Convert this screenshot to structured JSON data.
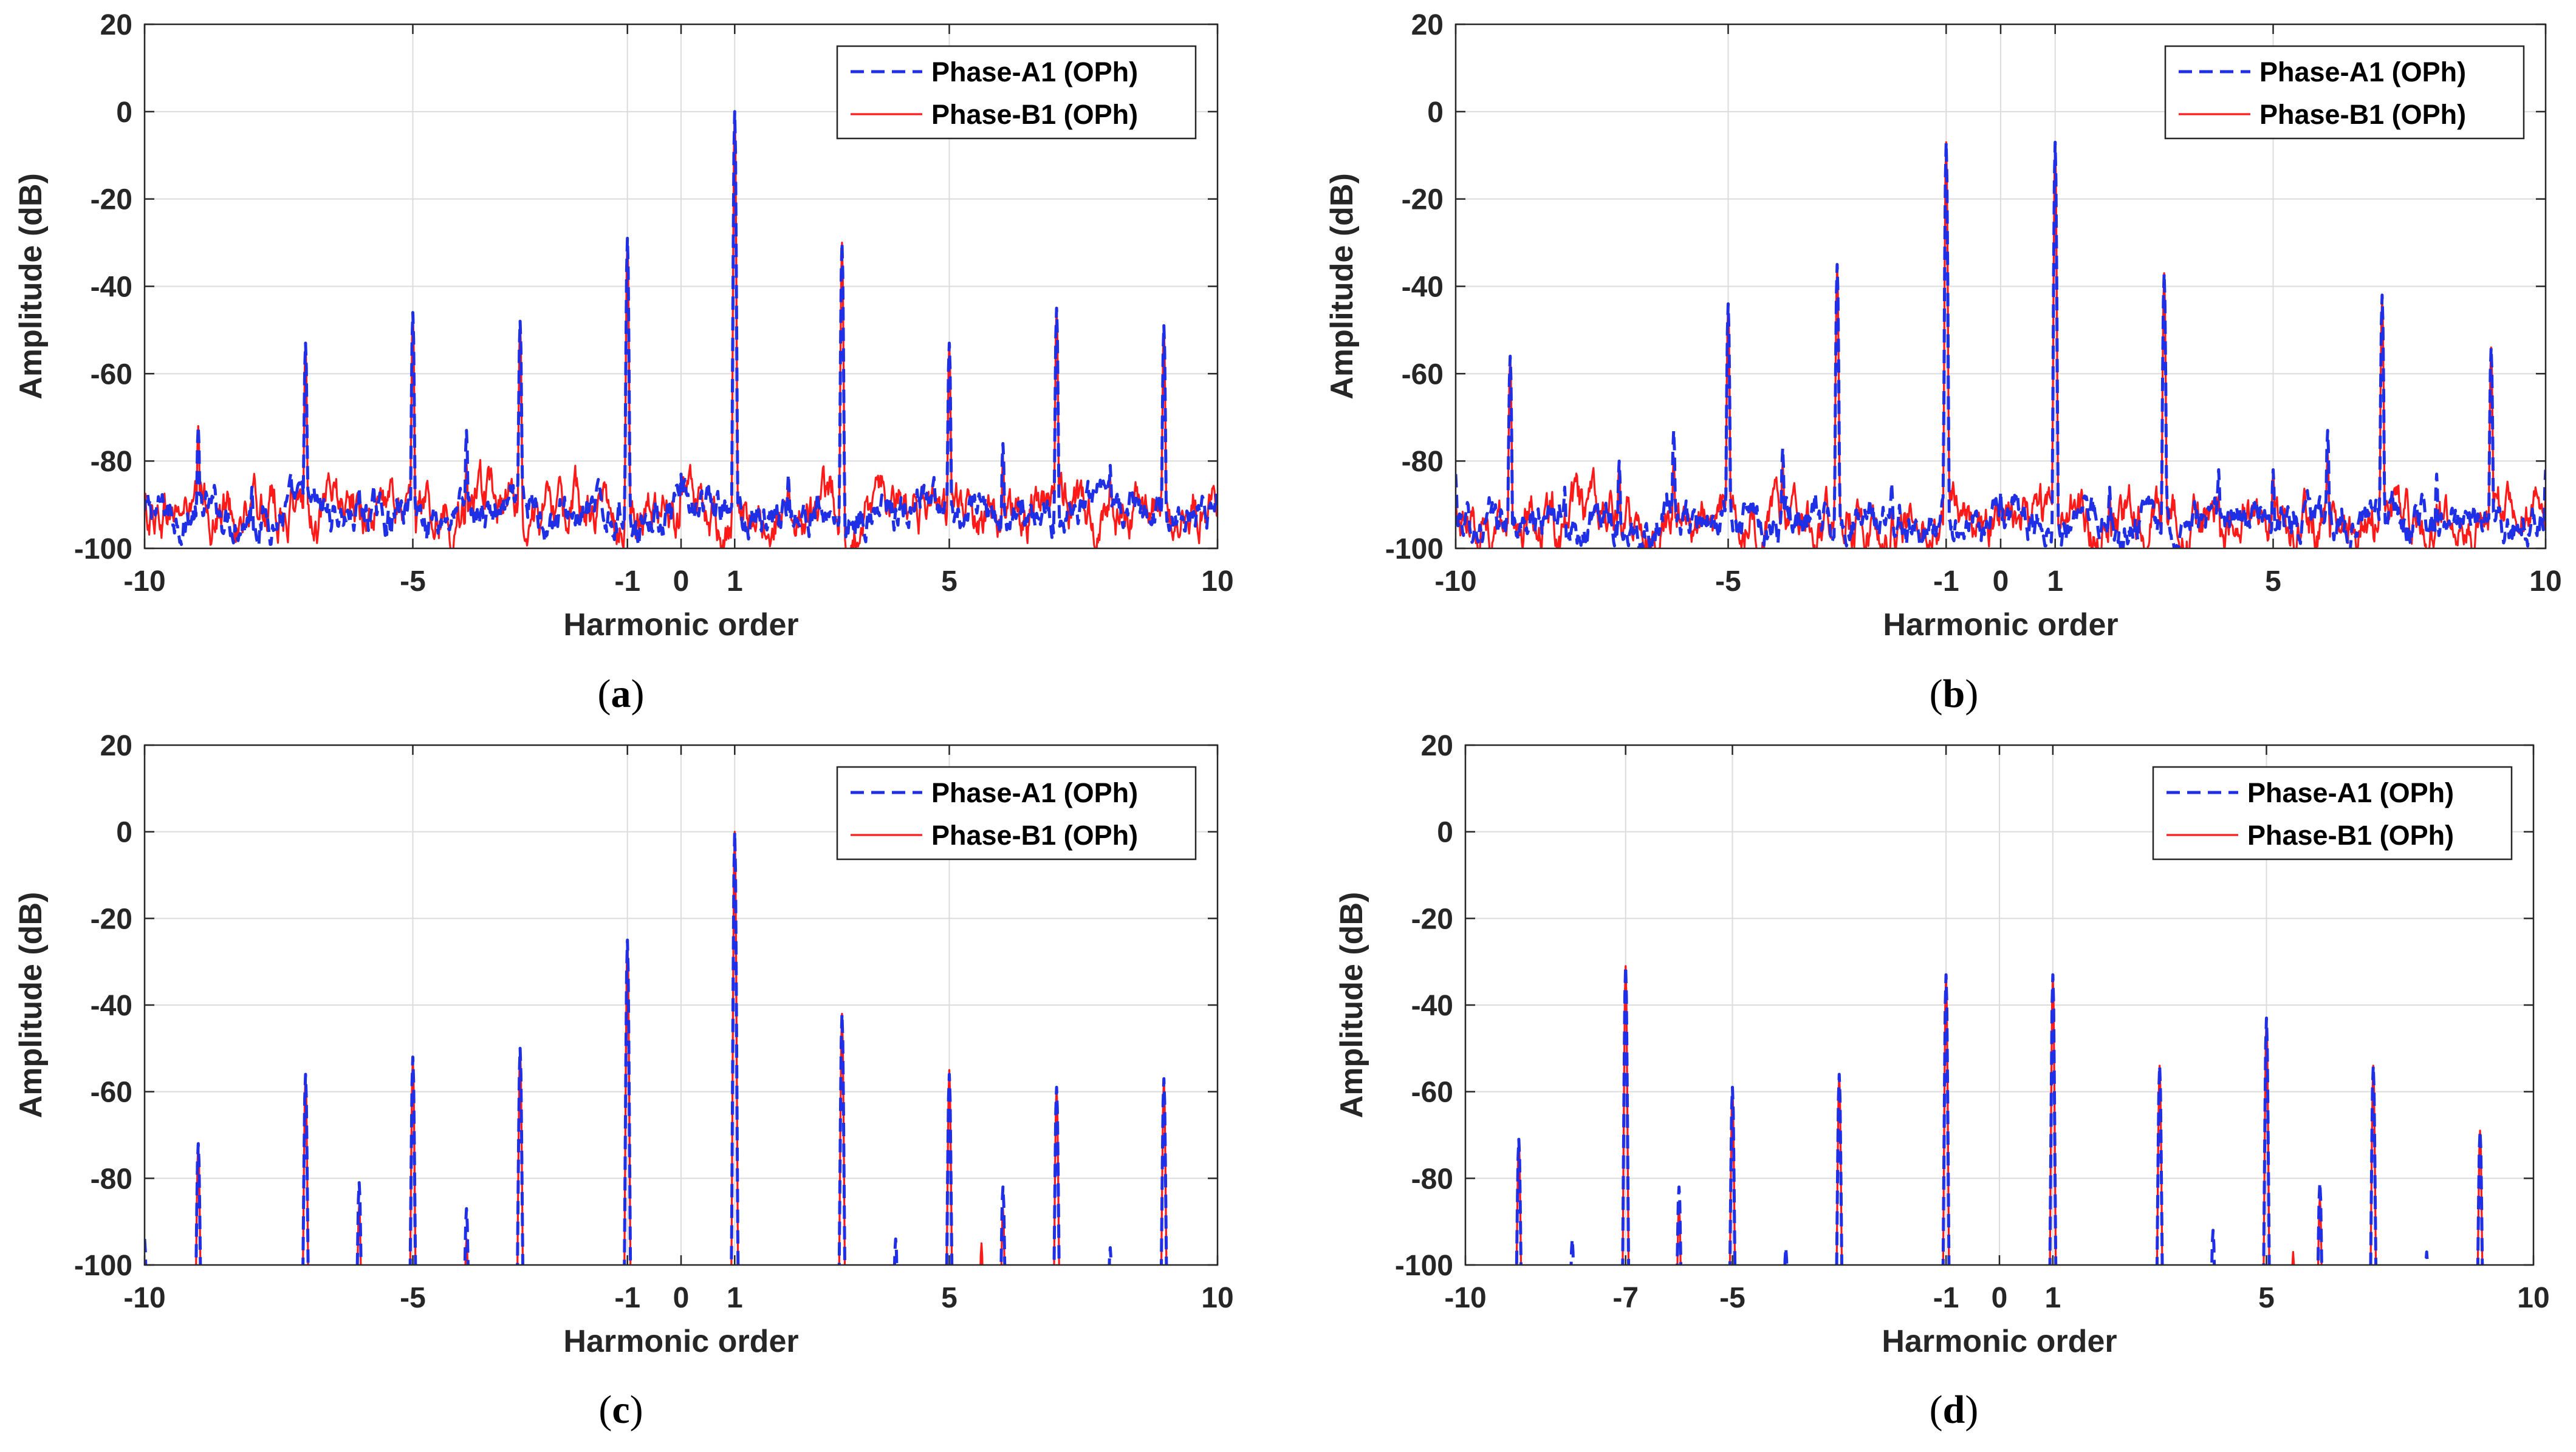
{
  "figure": {
    "colors": {
      "series_a": "#1f2fe6",
      "series_b": "#ff1a1a",
      "grid": "#dcdcdc",
      "axis": "#262626"
    }
  },
  "chart_data": [
    {
      "type": "line",
      "panel": "a",
      "caption_letter": "a",
      "xlabel": "Harmonic order",
      "ylabel": "Amplitude (dB)",
      "xlim": [
        -10,
        10
      ],
      "ylim": [
        -100,
        20
      ],
      "xticks": [
        -10,
        -5,
        -1,
        0,
        1,
        5,
        10
      ],
      "yticks": [
        -100,
        -80,
        -60,
        -40,
        -20,
        0,
        20
      ],
      "grid": true,
      "legend_position": "top-right",
      "series": [
        {
          "name": "Phase-A1 (OPh)",
          "style": "dashed",
          "peaks": [
            [
              -9,
              -72
            ],
            [
              -8,
              -86
            ],
            [
              -7,
              -53
            ],
            [
              -6,
              -86
            ],
            [
              -5,
              -46
            ],
            [
              -4,
              -73
            ],
            [
              -3,
              -48
            ],
            [
              -1,
              -29
            ],
            [
              0,
              -83
            ],
            [
              1,
              0
            ],
            [
              2,
              -83
            ],
            [
              3,
              -30
            ],
            [
              5,
              -53
            ],
            [
              6,
              -76
            ],
            [
              7,
              -45
            ],
            [
              8,
              -81
            ],
            [
              9,
              -49
            ]
          ],
          "noise": "-96..-88"
        },
        {
          "name": "Phase-B1 (OPh)",
          "style": "solid",
          "peaks": [
            [
              -9,
              -72
            ],
            [
              -8,
              -86
            ],
            [
              -7,
              -53
            ],
            [
              -5,
              -46
            ],
            [
              -4,
              -80
            ],
            [
              -3,
              -48
            ],
            [
              -1,
              -29
            ],
            [
              0,
              -84
            ],
            [
              1,
              0
            ],
            [
              2,
              -84
            ],
            [
              3,
              -30
            ],
            [
              5,
              -53
            ],
            [
              6,
              -79
            ],
            [
              7,
              -45
            ],
            [
              8,
              -84
            ],
            [
              9,
              -49
            ]
          ],
          "noise": "-97..-86"
        }
      ]
    },
    {
      "type": "line",
      "panel": "b",
      "caption_letter": "b",
      "xlabel": "Harmonic order",
      "ylabel": "Amplitude (dB)",
      "xlim": [
        -10,
        10
      ],
      "ylim": [
        -100,
        20
      ],
      "xticks": [
        -10,
        -5,
        -1,
        0,
        1,
        5,
        10
      ],
      "yticks": [
        -100,
        -80,
        -60,
        -40,
        -20,
        0,
        20
      ],
      "grid": true,
      "legend_position": "top-right",
      "series": [
        {
          "name": "Phase-A1 (OPh)",
          "style": "dashed",
          "peaks": [
            [
              -10,
              -83
            ],
            [
              -9,
              -56
            ],
            [
              -8,
              -86
            ],
            [
              -7,
              -80
            ],
            [
              -6,
              -73
            ],
            [
              -5,
              -44
            ],
            [
              -4,
              -77
            ],
            [
              -3,
              -35
            ],
            [
              -2,
              -85
            ],
            [
              -1,
              -7
            ],
            [
              0,
              -87
            ],
            [
              1,
              -7
            ],
            [
              2,
              -86
            ],
            [
              3,
              -37
            ],
            [
              4,
              -82
            ],
            [
              5,
              -82
            ],
            [
              6,
              -73
            ],
            [
              7,
              -42
            ],
            [
              8,
              -83
            ],
            [
              9,
              -54
            ],
            [
              10,
              -82
            ]
          ],
          "noise": "-98..-90"
        },
        {
          "name": "Phase-B1 (OPh)",
          "style": "solid",
          "peaks": [
            [
              -10,
              -88
            ],
            [
              -9,
              -56
            ],
            [
              -8,
              -92
            ],
            [
              -7,
              -80
            ],
            [
              -6,
              -79
            ],
            [
              -5,
              -44
            ],
            [
              -4,
              -80
            ],
            [
              -3,
              -35
            ],
            [
              -1,
              -7
            ],
            [
              0,
              -88
            ],
            [
              1,
              -7
            ],
            [
              2,
              -87
            ],
            [
              3,
              -37
            ],
            [
              4,
              -88
            ],
            [
              5,
              -82
            ],
            [
              6,
              -78
            ],
            [
              7,
              -42
            ],
            [
              8,
              -90
            ],
            [
              9,
              -54
            ],
            [
              10,
              -88
            ]
          ],
          "noise": "-99..-88"
        }
      ]
    },
    {
      "type": "line",
      "panel": "c",
      "caption_letter": "c",
      "xlabel": "Harmonic order",
      "ylabel": "Amplitude (dB)",
      "xlim": [
        -10,
        10
      ],
      "ylim": [
        -100,
        20
      ],
      "xticks": [
        -10,
        -5,
        -1,
        0,
        1,
        5,
        10
      ],
      "yticks": [
        -100,
        -80,
        -60,
        -40,
        -20,
        0,
        20
      ],
      "grid": true,
      "legend_position": "top-right",
      "series": [
        {
          "name": "Phase-A1 (OPh)",
          "style": "dashed",
          "peaks": [
            [
              -10,
              -94
            ],
            [
              -9,
              -72
            ],
            [
              -7,
              -56
            ],
            [
              -6,
              -81
            ],
            [
              -5,
              -52
            ],
            [
              -4,
              -87
            ],
            [
              -3,
              -50
            ],
            [
              -1,
              -25
            ],
            [
              1,
              0
            ],
            [
              3,
              -42
            ],
            [
              4,
              -94
            ],
            [
              5,
              -56
            ],
            [
              6,
              -82
            ],
            [
              7,
              -59
            ],
            [
              8,
              -96
            ],
            [
              9,
              -57
            ]
          ],
          "noise": "none"
        },
        {
          "name": "Phase-B1 (OPh)",
          "style": "solid",
          "peaks": [
            [
              -9,
              -72
            ],
            [
              -7,
              -56
            ],
            [
              -6,
              -86
            ],
            [
              -5,
              -52
            ],
            [
              -4,
              -94
            ],
            [
              -3,
              -50
            ],
            [
              -1,
              -25
            ],
            [
              1,
              0
            ],
            [
              3,
              -42
            ],
            [
              5,
              -55
            ],
            [
              5.6,
              -95
            ],
            [
              6,
              -87
            ],
            [
              7,
              -59
            ],
            [
              9,
              -57
            ]
          ],
          "noise": "none"
        }
      ]
    },
    {
      "type": "line",
      "panel": "d",
      "caption_letter": "d",
      "xlabel": "Harmonic order",
      "ylabel": "Amplitude (dB)",
      "xlim": [
        -10,
        10
      ],
      "ylim": [
        -100,
        20
      ],
      "xticks": [
        -10,
        -7,
        -5,
        -1,
        0,
        1,
        5,
        10
      ],
      "yticks": [
        -100,
        -80,
        -60,
        -40,
        -20,
        0,
        20
      ],
      "grid": true,
      "legend_position": "top-right",
      "series": [
        {
          "name": "Phase-A1 (OPh)",
          "style": "dashed",
          "peaks": [
            [
              -9,
              -71
            ],
            [
              -8,
              -94
            ],
            [
              -7,
              -31
            ],
            [
              -6,
              -82
            ],
            [
              -5,
              -59
            ],
            [
              -4,
              -96
            ],
            [
              -3,
              -56
            ],
            [
              -1,
              -33
            ],
            [
              1,
              -33
            ],
            [
              3,
              -54
            ],
            [
              4,
              -92
            ],
            [
              5,
              -43
            ],
            [
              6,
              -81
            ],
            [
              7,
              -54
            ],
            [
              8,
              -97
            ],
            [
              9,
              -69
            ]
          ],
          "noise": "none"
        },
        {
          "name": "Phase-B1 (OPh)",
          "style": "solid",
          "peaks": [
            [
              -9,
              -71
            ],
            [
              -7,
              -31
            ],
            [
              -6,
              -86
            ],
            [
              -5,
              -59
            ],
            [
              -3,
              -56
            ],
            [
              -1,
              -33
            ],
            [
              1,
              -33
            ],
            [
              3,
              -54
            ],
            [
              5,
              -43
            ],
            [
              5.5,
              -97
            ],
            [
              6,
              -84
            ],
            [
              7,
              -54
            ],
            [
              9,
              -69
            ]
          ],
          "noise": "none"
        }
      ]
    }
  ]
}
